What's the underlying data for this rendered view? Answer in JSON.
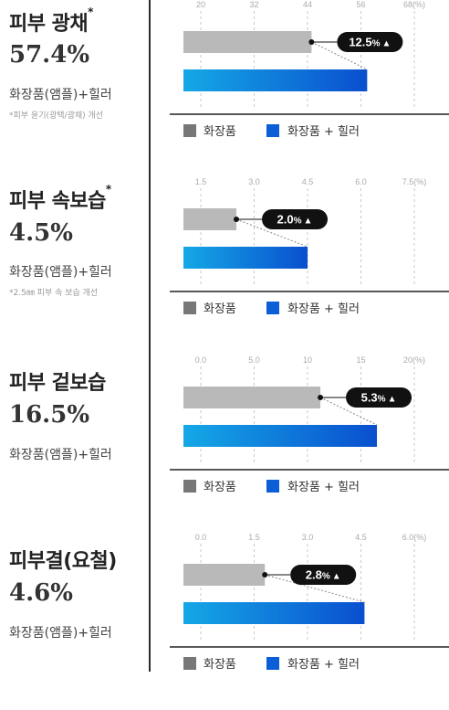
{
  "legend": {
    "cosmetic": "화장품",
    "healer": "화장품 + 힐러"
  },
  "colors": {
    "cosmetic_bar": "#b9b9b9",
    "cosmetic_legend": "#777777",
    "healer_start": "#14a8e6",
    "healer_end": "#0a4fcf",
    "healer_legend": "#0b5fd6",
    "bubble": "#111111",
    "axis": "#222222"
  },
  "sections": [
    {
      "title": "피부 광채",
      "mark": "*",
      "value": "57.4%",
      "desc": "화장품(앰플)+힐러",
      "note": "*피부 윤기(광택/광채) 개선",
      "badge": {
        "value": "12.5",
        "unit": "%",
        "arrow": "▲"
      }
    },
    {
      "title": "피부 속보습",
      "mark": "*",
      "value": "4.5%",
      "desc": "화장품(앰플)+힐러",
      "note": "*2.5㎜ 피부 속 보습 개선",
      "badge": {
        "value": "2.0",
        "unit": "%",
        "arrow": "▲"
      }
    },
    {
      "title": "피부 겉보습",
      "mark": "",
      "value": "16.5%",
      "desc": "화장품(앰플)+힐러",
      "note": "",
      "badge": {
        "value": "5.3",
        "unit": "%",
        "arrow": "▲"
      }
    },
    {
      "title": "피부결(요철)",
      "mark": "",
      "value": "4.6%",
      "desc": "화장품(앰플)+힐러",
      "note": "",
      "badge": {
        "value": "2.8",
        "unit": "%",
        "arrow": "▲"
      }
    }
  ],
  "chart_data": [
    {
      "type": "bar",
      "orientation": "horizontal",
      "tick_labels": [
        "20",
        "32",
        "44",
        "56",
        "68(%)"
      ],
      "xlim": [
        20,
        68
      ],
      "series": [
        {
          "name": "화장품",
          "values": [
            44.9
          ]
        },
        {
          "name": "화장품 + 힐러",
          "values": [
            57.4
          ]
        }
      ],
      "annotation": "12.5%▲",
      "grid": true
    },
    {
      "type": "bar",
      "orientation": "horizontal",
      "tick_labels": [
        "1.5",
        "3.0",
        "4.5",
        "6.0",
        "7.5(%)"
      ],
      "xlim": [
        1.5,
        7.5
      ],
      "series": [
        {
          "name": "화장품",
          "values": [
            2.5
          ]
        },
        {
          "name": "화장품 + 힐러",
          "values": [
            4.5
          ]
        }
      ],
      "annotation": "2.0%▲",
      "grid": true
    },
    {
      "type": "bar",
      "orientation": "horizontal",
      "tick_labels": [
        "0.0",
        "5.0",
        "10",
        "15",
        "20(%)"
      ],
      "xlim": [
        0,
        20
      ],
      "series": [
        {
          "name": "화장품",
          "values": [
            11.2
          ]
        },
        {
          "name": "화장품 + 힐러",
          "values": [
            16.5
          ]
        }
      ],
      "annotation": "5.3%▲",
      "grid": true
    },
    {
      "type": "bar",
      "orientation": "horizontal",
      "tick_labels": [
        "0.0",
        "1.5",
        "3.0",
        "4.5",
        "6.0(%)"
      ],
      "xlim": [
        0,
        6
      ],
      "series": [
        {
          "name": "화장품",
          "values": [
            1.8
          ]
        },
        {
          "name": "화장품 + 힐러",
          "values": [
            4.6
          ]
        }
      ],
      "annotation": "2.8%▲",
      "grid": true
    }
  ]
}
